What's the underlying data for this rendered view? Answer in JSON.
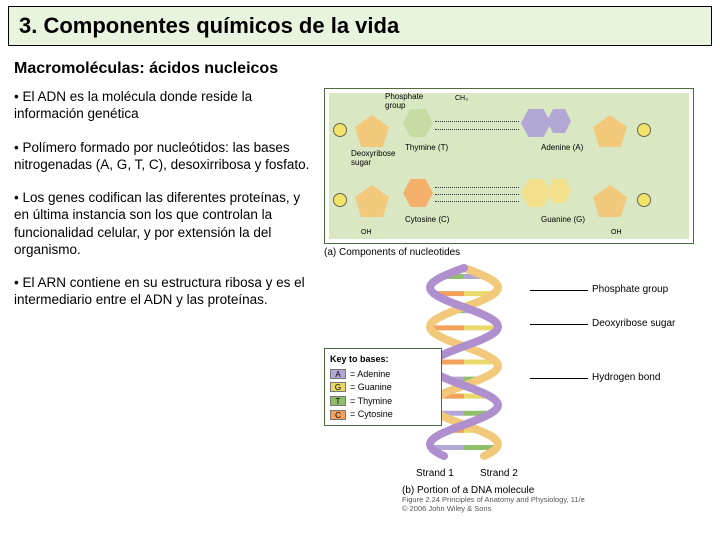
{
  "title": "3. Componentes químicos de la vida",
  "subtitle": "Macromoléculas: ácidos nucleicos",
  "bullets": [
    "• El ADN es la molécula donde reside la información genética",
    "• Polímero formado por nucleótidos: las bases nitrogenadas (A, G, T, C), desoxirribosa y fosfato.",
    "• Los genes codifican las diferentes proteínas, y en última instancia son los que controlan la funcionalidad celular, y por extensión la del organismo.",
    "• El ARN contiene en su estructura ribosa y es el intermediario entre el ADN y las proteínas."
  ],
  "nucleotide_panel": {
    "bg": "#d9e7c3",
    "border": "#4d6b3e",
    "labels": {
      "phosphate": "Phosphate\ngroup",
      "deoxy": "Deoxyribose\nsugar",
      "thymine": "Thymine (T)",
      "adenine": "Adenine (A)",
      "cytosine": "Cytosine (C)",
      "guanine": "Guanine (G)",
      "oh": "OH",
      "ch3": "CH₃"
    },
    "colors": {
      "sugar": "#f2c97a",
      "adenine": "#b3a7d6",
      "thymine": "#c6dca2",
      "guanine": "#f2e08c",
      "cytosine": "#f4b06a",
      "phosphate": "#f2e26a"
    },
    "caption": "(a) Components of nucleotides"
  },
  "helix": {
    "strand_colors": [
      "#f2c97a",
      "#b08fcf"
    ],
    "rung_colors": {
      "A": "#b3a7d6",
      "T": "#8fbf6b",
      "G": "#e8d96a",
      "C": "#f2a05a"
    },
    "pairs": [
      [
        "A",
        "T"
      ],
      [
        "G",
        "C"
      ],
      [
        "T",
        "A"
      ],
      [
        "C",
        "G"
      ],
      [
        "A",
        "T"
      ],
      [
        "G",
        "C"
      ],
      [
        "T",
        "A"
      ],
      [
        "C",
        "G"
      ],
      [
        "A",
        "T"
      ],
      [
        "G",
        "C"
      ],
      [
        "T",
        "A"
      ]
    ],
    "side_labels": {
      "phosphate": "Phosphate group",
      "sugar": "Deoxyribose sugar",
      "hbond": "Hydrogen bond",
      "strand1": "Strand 1",
      "strand2": "Strand 2"
    },
    "key": {
      "title": "Key to bases:",
      "rows": [
        {
          "letter": "A",
          "name": "= Adenine",
          "color": "#b3a7d6"
        },
        {
          "letter": "G",
          "name": "= Guanine",
          "color": "#e8d96a"
        },
        {
          "letter": "T",
          "name": "= Thymine",
          "color": "#8fbf6b"
        },
        {
          "letter": "C",
          "name": "= Cytosine",
          "color": "#f2a05a"
        }
      ]
    },
    "caption": "(b) Portion of a DNA molecule",
    "credit1": "Figure 2.24 Principles of Anatomy and Physiology, 11/e",
    "credit2": "© 2006 John Wiley & Sons"
  }
}
